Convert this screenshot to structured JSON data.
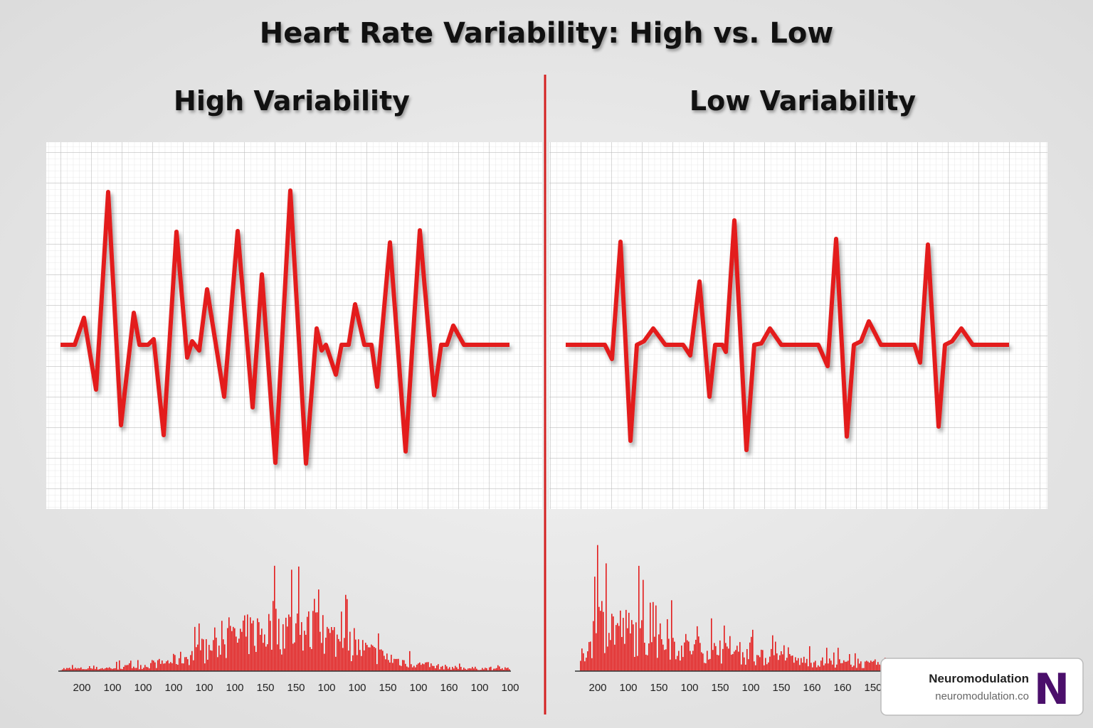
{
  "header": {
    "title": "Heart Rate Variability: High vs. Low"
  },
  "panels": [
    {
      "title": "High Variability",
      "axis_labels": [
        "200",
        "100",
        "100",
        "100",
        "100",
        "100",
        "150",
        "150",
        "100",
        "100",
        "150",
        "100",
        "160",
        "100",
        "100"
      ]
    },
    {
      "title": "Low Variability",
      "axis_labels": [
        "200",
        "100",
        "150",
        "100",
        "150",
        "100",
        "150",
        "160",
        "160",
        "150"
      ]
    }
  ],
  "badge": {
    "name": "Neuromodulation",
    "url": "neuromodulation.co",
    "logo": "N"
  }
}
